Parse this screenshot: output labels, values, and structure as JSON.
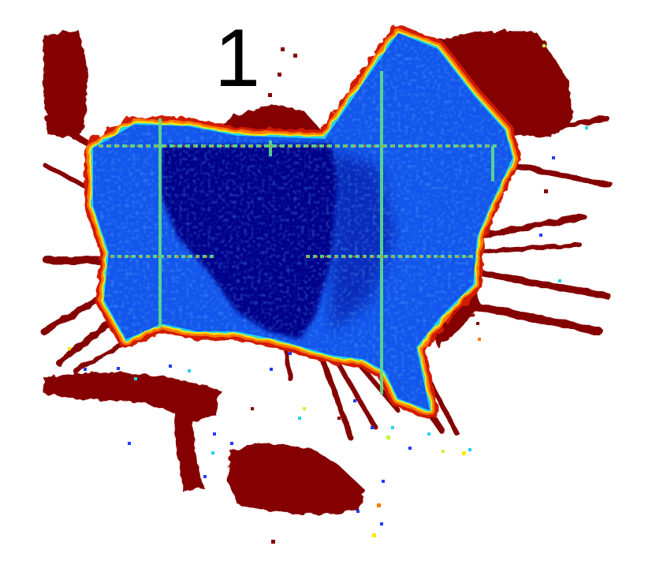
{
  "panel": {
    "label": "1"
  },
  "colormap": {
    "free_dark": "#00008b",
    "free_mid": "#0a3fd6",
    "free_light": "#1f6bff",
    "cyan": "#22d3ee",
    "green": "#5ee08a",
    "yellow": "#ffe500",
    "orange": "#ff7a00",
    "red": "#d11a00",
    "obstacle": "#850000"
  }
}
